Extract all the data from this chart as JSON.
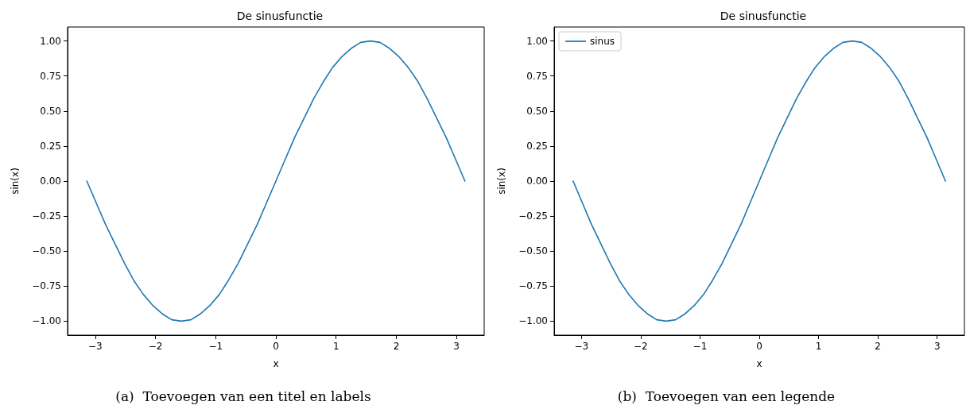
{
  "chart_data": [
    {
      "type": "line",
      "title": "De sinusfunctie",
      "xlabel": "x",
      "ylabel": "sin(x)",
      "x": [
        -3.14,
        -2.98,
        -2.83,
        -2.67,
        -2.51,
        -2.36,
        -2.2,
        -2.04,
        -1.88,
        -1.73,
        -1.57,
        -1.41,
        -1.26,
        -1.1,
        -0.94,
        -0.79,
        -0.63,
        -0.47,
        -0.31,
        -0.16,
        0,
        0.16,
        0.31,
        0.47,
        0.63,
        0.79,
        0.94,
        1.1,
        1.26,
        1.41,
        1.57,
        1.73,
        1.88,
        2.04,
        2.2,
        2.36,
        2.51,
        2.67,
        2.83,
        2.98,
        3.14
      ],
      "series": [
        {
          "color": "#1f77b4",
          "values": [
            0,
            -0.16,
            -0.31,
            -0.45,
            -0.59,
            -0.71,
            -0.81,
            -0.89,
            -0.95,
            -0.99,
            -1.0,
            -0.99,
            -0.95,
            -0.89,
            -0.81,
            -0.71,
            -0.59,
            -0.45,
            -0.31,
            -0.16,
            0,
            0.16,
            0.31,
            0.45,
            0.59,
            0.71,
            0.81,
            0.89,
            0.95,
            0.99,
            1.0,
            0.99,
            0.95,
            0.89,
            0.81,
            0.71,
            0.59,
            0.45,
            0.31,
            0.16,
            0
          ]
        }
      ],
      "xlim": [
        -3.46,
        3.46
      ],
      "xticks": [
        {
          "value": -3,
          "label": "−3"
        },
        {
          "value": -2,
          "label": "−2"
        },
        {
          "value": -1,
          "label": "−1"
        },
        0,
        1,
        2,
        3
      ],
      "ylim": [
        -1.1,
        1.1
      ],
      "yticks": [
        {
          "value": -1,
          "label": "−1.00"
        },
        {
          "value": -0.75,
          "label": "−0.75"
        },
        {
          "value": -0.5,
          "label": "−0.50"
        },
        {
          "value": -0.25,
          "label": "−0.25"
        },
        {
          "value": 0,
          "label": "0.00"
        },
        {
          "value": 0.25,
          "label": "0.25"
        },
        {
          "value": 0.5,
          "label": "0.50"
        },
        {
          "value": 0.75,
          "label": "0.75"
        },
        {
          "value": 1,
          "label": "1.00"
        }
      ],
      "grid": false,
      "legend": false,
      "marker": "none",
      "line_style": "solid",
      "annotations": [
        "(a)  Toevoegen van een titel en labels"
      ]
    },
    {
      "type": "line",
      "title": "De sinusfunctie",
      "xlabel": "x",
      "ylabel": "sin(x)",
      "x": [
        -3.14,
        -2.98,
        -2.83,
        -2.67,
        -2.51,
        -2.36,
        -2.2,
        -2.04,
        -1.88,
        -1.73,
        -1.57,
        -1.41,
        -1.26,
        -1.1,
        -0.94,
        -0.79,
        -0.63,
        -0.47,
        -0.31,
        -0.16,
        0,
        0.16,
        0.31,
        0.47,
        0.63,
        0.79,
        0.94,
        1.1,
        1.26,
        1.41,
        1.57,
        1.73,
        1.88,
        2.04,
        2.2,
        2.36,
        2.51,
        2.67,
        2.83,
        2.98,
        3.14
      ],
      "series": [
        {
          "name": "sinus",
          "color": "#1f77b4",
          "values": [
            0,
            -0.16,
            -0.31,
            -0.45,
            -0.59,
            -0.71,
            -0.81,
            -0.89,
            -0.95,
            -0.99,
            -1.0,
            -0.99,
            -0.95,
            -0.89,
            -0.81,
            -0.71,
            -0.59,
            -0.45,
            -0.31,
            -0.16,
            0,
            0.16,
            0.31,
            0.45,
            0.59,
            0.71,
            0.81,
            0.89,
            0.95,
            0.99,
            1.0,
            0.99,
            0.95,
            0.89,
            0.81,
            0.71,
            0.59,
            0.45,
            0.31,
            0.16,
            0
          ]
        }
      ],
      "xlim": [
        -3.46,
        3.46
      ],
      "xticks": [
        {
          "value": -3,
          "label": "−3"
        },
        {
          "value": -2,
          "label": "−2"
        },
        {
          "value": -1,
          "label": "−1"
        },
        0,
        1,
        2,
        3
      ],
      "ylim": [
        -1.1,
        1.1
      ],
      "yticks": [
        {
          "value": -1,
          "label": "−1.00"
        },
        {
          "value": -0.75,
          "label": "−0.75"
        },
        {
          "value": -0.5,
          "label": "−0.50"
        },
        {
          "value": -0.25,
          "label": "−0.25"
        },
        {
          "value": 0,
          "label": "0.00"
        },
        {
          "value": 0.25,
          "label": "0.25"
        },
        {
          "value": 0.5,
          "label": "0.50"
        },
        {
          "value": 0.75,
          "label": "0.75"
        },
        {
          "value": 1,
          "label": "1.00"
        }
      ],
      "grid": false,
      "legend": "top left",
      "marker": "none",
      "line_style": "solid",
      "annotations": [
        "(b)  Toevoegen van een legende"
      ]
    }
  ]
}
